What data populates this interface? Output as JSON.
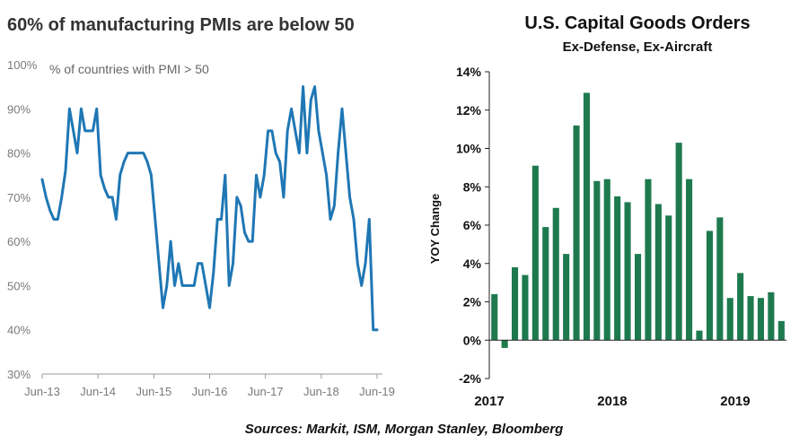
{
  "footer": {
    "sources": "Sources: Markit, ISM, Morgan Stanley, Bloomberg"
  },
  "colors": {
    "line": "#1f77b4",
    "bar": "#1e7a4e",
    "left_tick": "#7a7a7a",
    "right_text": "#111111"
  },
  "chart_data": [
    {
      "type": "line",
      "title": "60% of manufacturing PMIs are below 50",
      "subtitle": "% of countries with PMI > 50",
      "xlabel": "",
      "ylabel": "",
      "ylim": [
        30,
        100
      ],
      "y_ticks": [
        "30%",
        "40%",
        "50%",
        "60%",
        "70%",
        "80%",
        "90%",
        "100%"
      ],
      "x_ticks": [
        "Jun-13",
        "Jun-14",
        "Jun-15",
        "Jun-16",
        "Jun-17",
        "Jun-18",
        "Jun-19"
      ],
      "grid": false,
      "series": [
        {
          "values": [
            74,
            70,
            67,
            65,
            65,
            70,
            76,
            90,
            85,
            80,
            90,
            85,
            85,
            85,
            90,
            75,
            72,
            70,
            70,
            65,
            75,
            78,
            80,
            80,
            80,
            80,
            80,
            78,
            75,
            65,
            55,
            45,
            50,
            60,
            50,
            55,
            50,
            50,
            50,
            50,
            55,
            55,
            50,
            45,
            53,
            65,
            65,
            75,
            50,
            55,
            70,
            68,
            62,
            60,
            60,
            75,
            70,
            75,
            85,
            85,
            80,
            78,
            70,
            85,
            90,
            85,
            80,
            95,
            80,
            92,
            95,
            85,
            80,
            75,
            65,
            68,
            80,
            90,
            80,
            70,
            65,
            55,
            50,
            55,
            65,
            40,
            40
          ]
        }
      ]
    },
    {
      "type": "bar",
      "title": "U.S. Capital Goods Orders",
      "subtitle": "Ex-Defense, Ex-Aircraft",
      "xlabel": "",
      "ylabel": "YOY Change",
      "ylim": [
        -2,
        14
      ],
      "y_ticks": [
        "-2%",
        "0%",
        "2%",
        "4%",
        "6%",
        "8%",
        "10%",
        "12%",
        "14%"
      ],
      "x_ticks": [
        "2017",
        "2018",
        "2019"
      ],
      "grid": false,
      "series": [
        {
          "values": [
            2.4,
            -0.4,
            3.8,
            3.4,
            9.1,
            5.9,
            6.9,
            4.5,
            11.2,
            12.9,
            8.3,
            8.4,
            7.5,
            7.2,
            4.5,
            8.4,
            7.1,
            6.5,
            10.3,
            8.4,
            0.5,
            5.7,
            6.4,
            2.2,
            3.5,
            2.3,
            2.2,
            2.5,
            1.0
          ]
        }
      ]
    }
  ]
}
